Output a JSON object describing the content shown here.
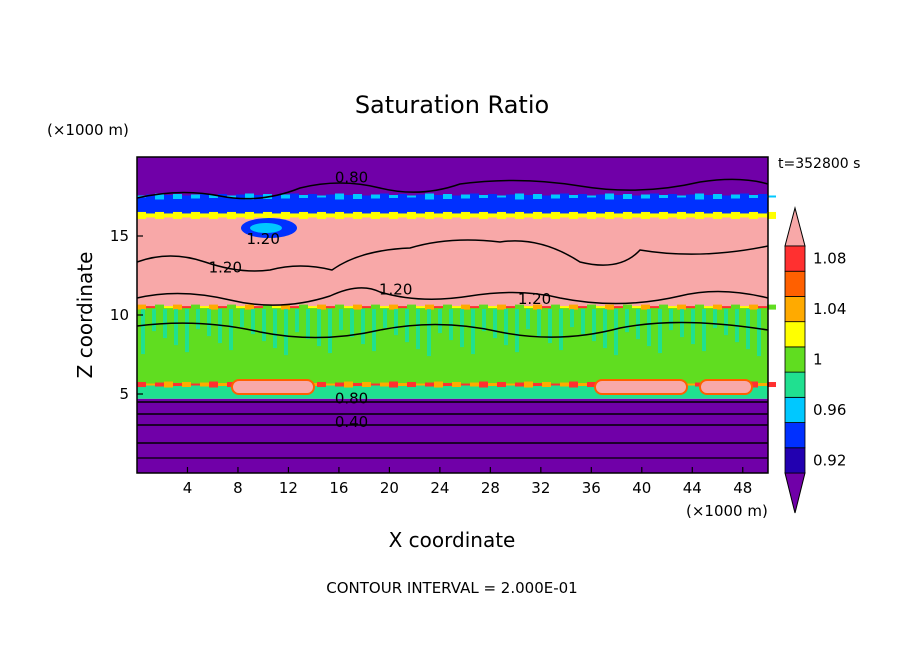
{
  "chart_data": {
    "type": "heatmap",
    "title": "Saturation Ratio",
    "xlabel": "X coordinate",
    "ylabel": "Z coordinate",
    "x_unit": "(×1000 m)",
    "y_unit": "(×1000 m)",
    "timestamp": "t=352800 s",
    "footer": "CONTOUR INTERVAL = 2.000E-01",
    "xlim": [
      0,
      50
    ],
    "ylim": [
      0,
      20
    ],
    "x_ticks": [
      4,
      8,
      12,
      16,
      20,
      24,
      28,
      32,
      36,
      40,
      44,
      48
    ],
    "y_ticks": [
      5,
      10,
      15
    ],
    "colorbar": {
      "labels": [
        "1.08",
        "1.04",
        "1",
        "0.96",
        "0.92"
      ],
      "bins": [
        {
          "lo": null,
          "hi": 0.92,
          "color": "#7000a8"
        },
        {
          "lo": 0.92,
          "hi": 0.94,
          "color": "#2200b0"
        },
        {
          "lo": 0.94,
          "hi": 0.96,
          "color": "#0030ff"
        },
        {
          "lo": 0.96,
          "hi": 0.98,
          "color": "#00c8ff"
        },
        {
          "lo": 0.98,
          "hi": 1.0,
          "color": "#20e090"
        },
        {
          "lo": 1.0,
          "hi": 1.02,
          "color": "#60dd20"
        },
        {
          "lo": 1.02,
          "hi": 1.04,
          "color": "#ffff00"
        },
        {
          "lo": 1.04,
          "hi": 1.06,
          "color": "#ffaa00"
        },
        {
          "lo": 1.06,
          "hi": 1.08,
          "color": "#ff6000"
        },
        {
          "lo": 1.08,
          "hi": 1.1,
          "color": "#ff3030"
        },
        {
          "lo": 1.1,
          "hi": null,
          "color": "#f8a8a8"
        }
      ]
    },
    "layers": [
      {
        "z_range": [
          0,
          4.7
        ],
        "value_range": "<0.92",
        "color": "#7000a8"
      },
      {
        "z_range": [
          4.7,
          5.6
        ],
        "value_range": "0.96–1.00",
        "color": "#20e090"
      },
      {
        "z_range": [
          5.6,
          10.5
        ],
        "value_range": "1.00–1.02",
        "color": "#60dd20"
      },
      {
        "z_range": [
          10.5,
          16.3
        ],
        "value_range": ">1.10",
        "color": "#f8a8a8"
      },
      {
        "z_range": [
          16.3,
          17.5
        ],
        "value_range": "0.92–1.08",
        "color": "#0030ff"
      },
      {
        "z_range": [
          17.5,
          20
        ],
        "value_range": "<0.92",
        "color": "#7000a8"
      }
    ],
    "contour_labels": [
      {
        "text": "0.80",
        "x": 17,
        "z": 18.4
      },
      {
        "text": "1.20",
        "x": 10,
        "z": 14.5
      },
      {
        "text": "1.20",
        "x": 7,
        "z": 12.7
      },
      {
        "text": "1.20",
        "x": 20.5,
        "z": 11.3
      },
      {
        "text": "1.20",
        "x": 31.5,
        "z": 10.7
      },
      {
        "text": "0.80",
        "x": 17,
        "z": 4.4
      },
      {
        "text": "0.40",
        "x": 17,
        "z": 2.9
      }
    ]
  }
}
